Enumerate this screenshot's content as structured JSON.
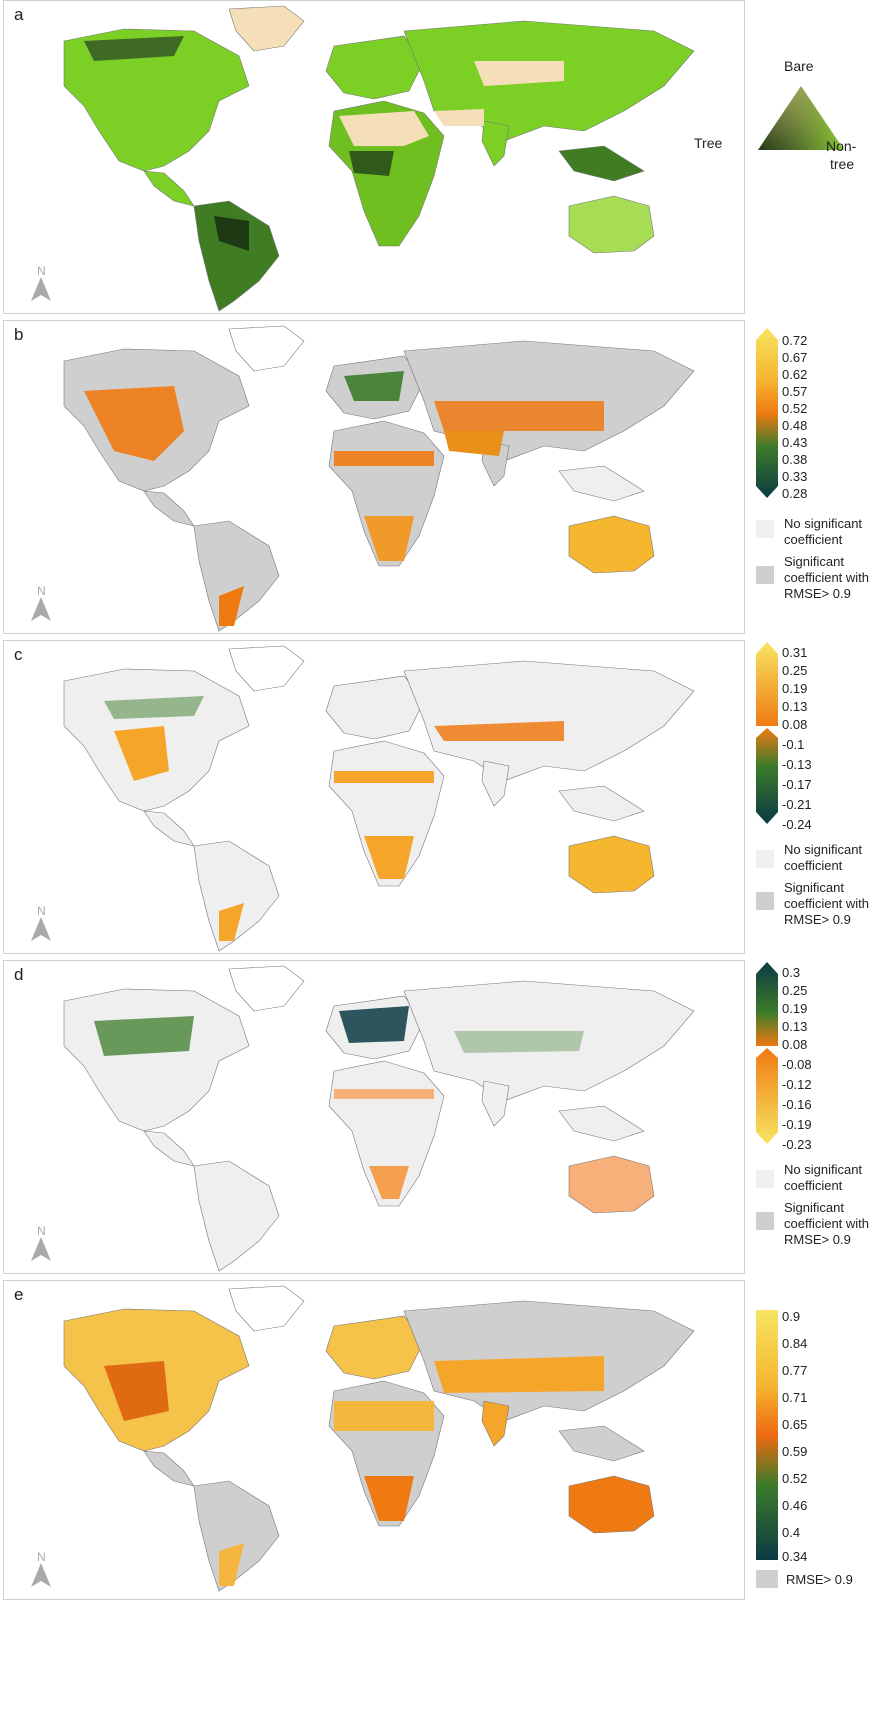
{
  "colors": {
    "bare": "#f5dfb8",
    "tree": "#1e3a14",
    "nontree": "#7ccf24",
    "gray_sig": "#cfcfcf",
    "gray_nosig": "#efefef",
    "orange": "#ef7a12",
    "yellow": "#f7e562",
    "darkteal": "#0b3a44",
    "green": "#3c7b2a"
  },
  "north_label": "N",
  "panels": [
    {
      "letter": "a",
      "type": "ternary-map",
      "legend": {
        "type": "ternary",
        "labels": {
          "top": "Bare",
          "left": "Tree",
          "right_line1": "Non-",
          "right_line2": "tree"
        }
      }
    },
    {
      "letter": "b",
      "type": "coefficient-map",
      "legend": {
        "ticks": [
          "0.72",
          "0.67",
          "0.62",
          "0.57",
          "0.52",
          "0.48",
          "0.43",
          "0.38",
          "0.33",
          "0.28"
        ],
        "notes": [
          "No significant coefficient",
          "Significant coefficient with RMSE> 0.9"
        ]
      }
    },
    {
      "letter": "c",
      "type": "coefficient-map",
      "legend": {
        "ticks": [
          "0.31",
          "0.25",
          "0.19",
          "0.13",
          "0.08",
          "-0.1",
          "-0.13",
          "-0.17",
          "-0.21",
          "-0.24"
        ],
        "notes": [
          "No significant coefficient",
          "Significant coefficient with RMSE> 0.9"
        ]
      }
    },
    {
      "letter": "d",
      "type": "coefficient-map",
      "legend": {
        "ticks": [
          "0.3",
          "0.25",
          "0.19",
          "0.13",
          "0.08",
          "-0.08",
          "-0.12",
          "-0.16",
          "-0.19",
          "-0.23"
        ],
        "notes": [
          "No significant coefficient",
          "Significant coefficient with RMSE> 0.9"
        ]
      }
    },
    {
      "letter": "e",
      "type": "rmse-map",
      "legend": {
        "ticks": [
          "0.9",
          "0.84",
          "0.77",
          "0.71",
          "0.65",
          "0.59",
          "0.52",
          "0.46",
          "0.4",
          "0.34"
        ],
        "notes": [
          "RMSE> 0.9"
        ]
      }
    }
  ]
}
